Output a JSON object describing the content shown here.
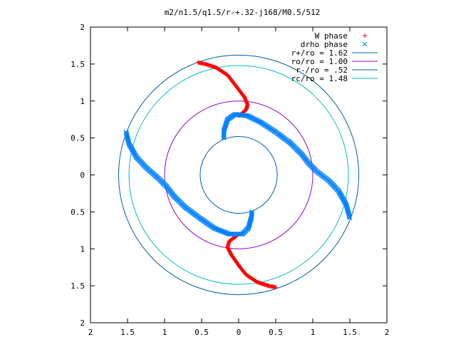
{
  "chart_data": {
    "type": "scatter",
    "title": "m2/n1.5/q1.5/r-+.32-j168/M0.5/512",
    "xlim": [
      -2,
      2
    ],
    "ylim": [
      -2,
      2
    ],
    "grid": false,
    "legend_position": "top-right",
    "x_ticks": [
      "2",
      "1.5",
      "1",
      "0.5",
      "0",
      "0.5",
      "1",
      "1.5",
      "2"
    ],
    "y_ticks": [
      "2",
      "1.5",
      "1",
      "0.5",
      "0",
      "0.5",
      "1",
      "1.5",
      "2"
    ],
    "series": [
      {
        "name": "W phase",
        "marker": "+",
        "color": "#ff0000",
        "arms": [
          [
            [
              -0.55,
              1.52
            ],
            [
              -0.45,
              1.5
            ],
            [
              -0.3,
              1.45
            ],
            [
              -0.15,
              1.35
            ],
            [
              -0.05,
              1.22
            ],
            [
              0.08,
              1.05
            ],
            [
              0.12,
              0.95
            ],
            [
              0.1,
              0.88
            ],
            [
              0.04,
              0.83
            ],
            [
              0,
              0.8
            ]
          ],
          [
            [
              0.5,
              -1.52
            ],
            [
              0.4,
              -1.5
            ],
            [
              0.25,
              -1.45
            ],
            [
              0.1,
              -1.35
            ],
            [
              0.02,
              -1.25
            ],
            [
              -0.1,
              -1.08
            ],
            [
              -0.15,
              -0.98
            ],
            [
              -0.13,
              -0.9
            ],
            [
              -0.05,
              -0.84
            ],
            [
              0,
              -0.8
            ]
          ]
        ]
      },
      {
        "name": "drho phase",
        "marker": "x",
        "color": "#0080ff",
        "arms": [
          [
            [
              1.5,
              -0.58
            ],
            [
              1.45,
              -0.4
            ],
            [
              1.35,
              -0.22
            ],
            [
              1.22,
              -0.08
            ],
            [
              1.05,
              0.05
            ],
            [
              0.95,
              0.15
            ],
            [
              0.85,
              0.28
            ],
            [
              0.7,
              0.43
            ],
            [
              0.5,
              0.58
            ],
            [
              0.3,
              0.71
            ],
            [
              0.12,
              0.8
            ],
            [
              -0.05,
              0.82
            ],
            [
              -0.15,
              0.75
            ],
            [
              -0.2,
              0.6
            ],
            [
              -0.2,
              0.5
            ]
          ],
          [
            [
              -1.52,
              0.58
            ],
            [
              -1.48,
              0.42
            ],
            [
              -1.38,
              0.24
            ],
            [
              -1.25,
              0.1
            ],
            [
              -1.08,
              -0.05
            ],
            [
              -0.98,
              -0.15
            ],
            [
              -0.88,
              -0.28
            ],
            [
              -0.73,
              -0.43
            ],
            [
              -0.53,
              -0.58
            ],
            [
              -0.33,
              -0.72
            ],
            [
              -0.13,
              -0.8
            ],
            [
              0.05,
              -0.8
            ],
            [
              0.13,
              -0.72
            ],
            [
              0.17,
              -0.58
            ],
            [
              0.18,
              -0.5
            ]
          ]
        ]
      },
      {
        "name": "r+/ro = 1.62",
        "type": "circle",
        "radius": 1.62,
        "color": "#0060ad"
      },
      {
        "name": "ro/ro = 1.00",
        "type": "circle",
        "radius": 1.0,
        "color": "#9400d3"
      },
      {
        "name": "r-/ro = .52",
        "type": "circle",
        "radius": 0.52,
        "color": "#0060ad"
      },
      {
        "name": "rc/ro = 1.48",
        "type": "circle",
        "radius": 1.48,
        "color": "#00c0c0"
      }
    ]
  }
}
